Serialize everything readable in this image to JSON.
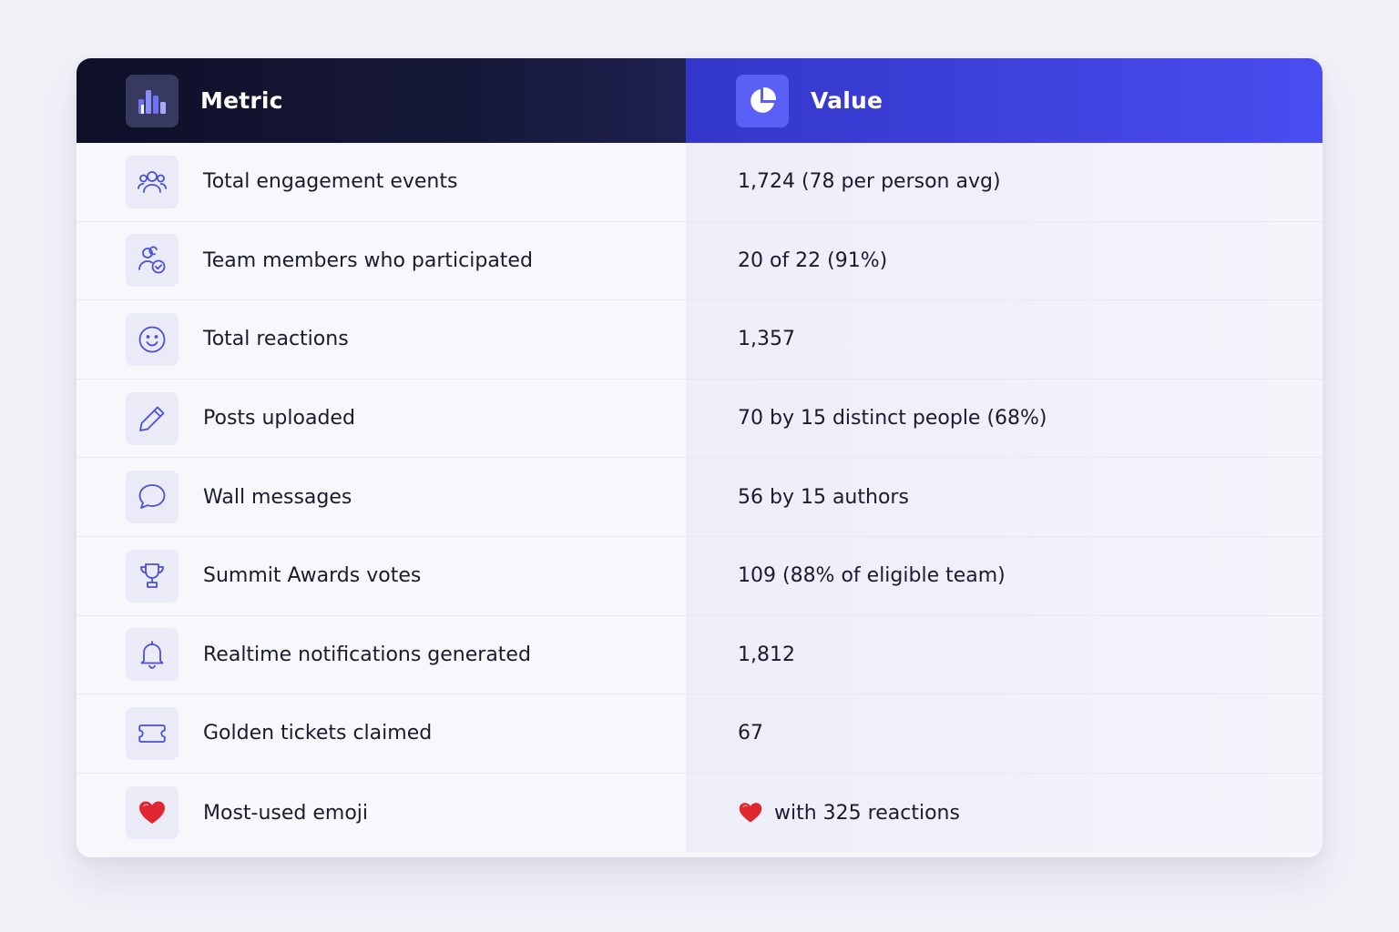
{
  "header": {
    "metric_label": "Metric",
    "value_label": "Value",
    "metric_icon": "bar-chart-icon",
    "value_icon": "pie-chart-icon"
  },
  "colors": {
    "metric_header_bg": "#111330",
    "value_header_bg": "#3f42dc",
    "icon_stroke": "#4a4fd6",
    "heart": "#e0262f"
  },
  "rows": [
    {
      "icon": "users-group-icon",
      "label": "Total engagement events",
      "value": "1,724 (78 per person avg)"
    },
    {
      "icon": "user-check-icon",
      "label": "Team members who participated",
      "value": "20 of 22 (91%)"
    },
    {
      "icon": "smiley-icon",
      "label": "Total reactions",
      "value": "1,357"
    },
    {
      "icon": "pencil-icon",
      "label": "Posts uploaded",
      "value": "70 by 15 distinct people (68%)"
    },
    {
      "icon": "speech-bubble-icon",
      "label": "Wall messages",
      "value": "56 by 15 authors"
    },
    {
      "icon": "trophy-icon",
      "label": "Summit Awards votes",
      "value": "109 (88% of eligible team)"
    },
    {
      "icon": "bell-icon",
      "label": "Realtime notifications generated",
      "value": "1,812"
    },
    {
      "icon": "ticket-icon",
      "label": "Golden tickets claimed",
      "value": "67"
    },
    {
      "icon": "heart-emoji-icon",
      "label": "Most-used emoji",
      "value": "with 325 reactions",
      "value_icon": "heart-emoji-icon"
    }
  ]
}
